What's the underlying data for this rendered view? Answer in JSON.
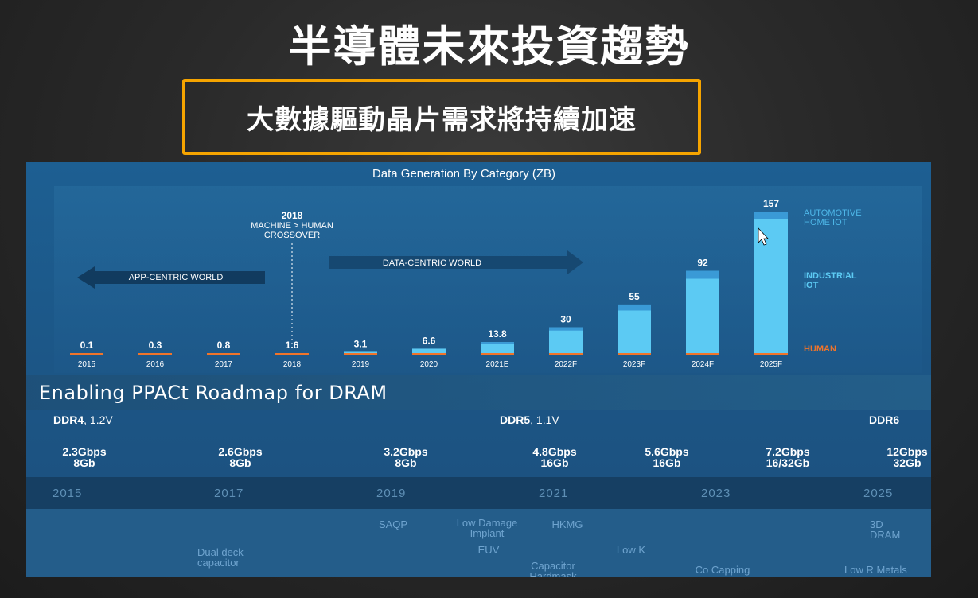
{
  "slide": {
    "title": "半導體未來投資趨勢",
    "subtitle": "大數據驅動晶片需求將持續加速"
  },
  "chart_data": {
    "type": "bar",
    "title": "Data Generation By Category (ZB)",
    "categories": [
      "2015",
      "2016",
      "2017",
      "2018",
      "2019",
      "2020",
      "2021E",
      "2022F",
      "2023F",
      "2024F",
      "2025F"
    ],
    "values": [
      0.1,
      0.3,
      0.8,
      1.6,
      3.1,
      6.6,
      13.8,
      30,
      55,
      92,
      157
    ],
    "value_labels": [
      "0.1",
      "0.3",
      "0.8",
      "1.6",
      "3.1",
      "6.6",
      "13.8",
      "30",
      "55",
      "92",
      "157"
    ],
    "ylim": [
      0,
      157
    ],
    "grid": false,
    "legend_placement": "right",
    "legend": [
      {
        "label_line1": "AUTOMOTIVE",
        "label_line2": "HOME IOT",
        "color": "#3a9ad6"
      },
      {
        "label_line1": "INDUSTRIAL",
        "label_line2": "IOT",
        "color": "#5ccaf3"
      },
      {
        "label_line1": "HUMAN",
        "label_line2": "",
        "color": "#f0742a"
      }
    ],
    "annotations": {
      "crossover_year": "2018",
      "crossover_line1": "MACHINE > HUMAN",
      "crossover_line2": "CROSSOVER",
      "left_world": "APP-CENTRIC WORLD",
      "right_world": "DATA-CENTRIC WORLD"
    },
    "colors": {
      "industrial": "#5ccaf3",
      "automotive": "#3a9ad6",
      "human": "#f0742a"
    }
  },
  "roadmap": {
    "title": "Enabling PPACt Roadmap for DRAM",
    "generations": [
      {
        "name": "DDR4",
        "voltage": ", 1.2V"
      },
      {
        "name": "DDR5",
        "voltage": ", 1.1V"
      },
      {
        "name": "DDR6",
        "voltage": ""
      }
    ],
    "specs": [
      {
        "speed": "2.3Gbps",
        "density": "8Gb"
      },
      {
        "speed": "2.6Gbps",
        "density": "8Gb"
      },
      {
        "speed": "3.2Gbps",
        "density": "8Gb"
      },
      {
        "speed": "4.8Gbps",
        "density": "16Gb"
      },
      {
        "speed": "5.6Gbps",
        "density": "16Gb"
      },
      {
        "speed": "7.2Gbps",
        "density": "16/32Gb"
      },
      {
        "speed": "12Gbps",
        "density": "32Gb"
      }
    ],
    "years": [
      "2015",
      "2017",
      "2019",
      "2021",
      "2023",
      "2025"
    ],
    "technologies": [
      {
        "line1": "Dual deck",
        "line2": "capacitor"
      },
      {
        "line1": "SAQP",
        "line2": ""
      },
      {
        "line1": "Low Damage",
        "line2": "Implant"
      },
      {
        "line1": "HKMG",
        "line2": ""
      },
      {
        "line1": "EUV",
        "line2": ""
      },
      {
        "line1": "Capacitor",
        "line2": "Hardmask"
      },
      {
        "line1": "Low K",
        "line2": ""
      },
      {
        "line1": "Co Capping",
        "line2": ""
      },
      {
        "line1": "3D",
        "line2": "DRAM"
      },
      {
        "line1": "Low R Metals",
        "line2": ""
      }
    ]
  }
}
